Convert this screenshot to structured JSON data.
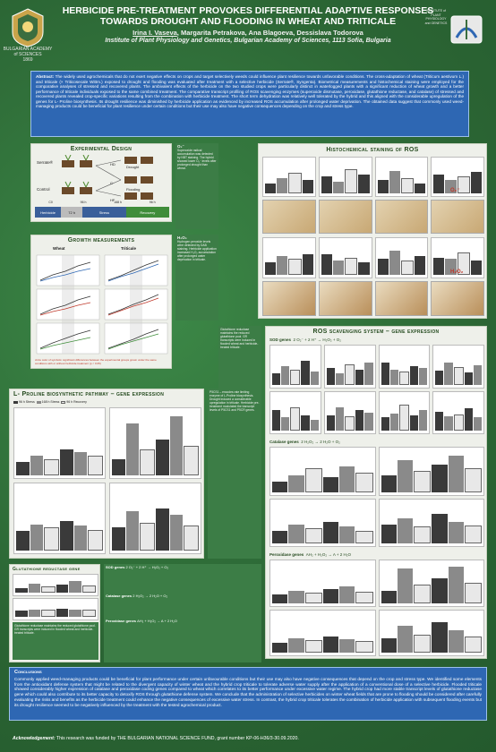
{
  "header": {
    "title_line1": "HERBICIDE PRE-TREATMENT PROVOKES DIFFERENTIAL ADAPTIVE RESPONSES",
    "title_line2": "TOWARDS DROUGHT AND FLOODING IN WHEAT AND TRITICALE",
    "author_main": "Irina I. Vaseva",
    "authors_rest": ", Margarita Petrakova, Ana Blagoeva, Dessislava Todorova",
    "affiliation": "Institute of Plant Physiology and Genetics,  Bulgarian Academy of Sciences, 1113 Sofia, Bulgaria",
    "left_logo_text": "BULGARIAN ACADEMY of SCIENCES",
    "left_logo_year": "1869",
    "right_logo_text": "INSTITUTE of PLANT PHYSIOLOGY and GENETICS"
  },
  "abstract": {
    "label": "Abstract:",
    "text": " The widely used agrochemicals that do not exert negative effects on crops and target selectively weeds could influence plant resilience towards unfavorable conditions. The cross-adaptation of wheat (Triticum aestivum L.) and triticale (× Triticosecale Wittm.) exposed to drought and flooding was evaluated after treatment with a selective herbicide (Serrate®, Syngenta). Biometrical measurements and histochemical staining were employed for the comparative analyses of stressed and recovered plants. The ambivalent effects of the herbicide on the two studied crops were particularly distinct in waterlogged plants with a significant reduction of wheat growth and a better performance of triticale individuals exposed to the same combined treatment. The comparative transcript profiling of ROS scavenging enzymes (superoxide dismutase, peroxidase, glutathione reductase, and catalase) of stressed and recovered plants revealed crop-specific variations resulting from the combination with herbicide treatment. The short term dehydration was relatively well tolerated by the hybrid and this aligned with the considerable upregulation of the genes for L- Proline biosynthesis. Its drought resilience was diminished by herbicide application as evidenced by increased ROS accumulation after prolonged water deprivation. The obtained data suggest that commonly used weed-managing products could be beneficial for plant resilience under certain conditions but their use may also have negative consequences depending on the crop and stress type."
  },
  "experimental": {
    "title": "Experimental Design",
    "labels": [
      "Serrate®",
      "Drought",
      "Control",
      "HD",
      "C",
      "Flooding",
      "HF",
      "CD",
      "CF"
    ],
    "timeline": [
      "Herbicide",
      "72 h",
      "Stress",
      "Recovery"
    ],
    "timepoints": [
      "C0",
      "96 h",
      "168 h",
      "96 h"
    ]
  },
  "histochem": {
    "title": "Histochemical staining of ROS",
    "o2_label": "O₂⁻",
    "h2o2_label": "H₂O₂",
    "o2_notes": "Superoxide radical accumulation was detected by NBT staining. The hybrid showed lower O₂⁻ levels after prolonged drought than wheat.",
    "h2o2_notes": "Hydrogen peroxide levels were detected by DAB staining. Herbicide application increased H₂O₂ accumulation after prolonged water deprivation in triticale."
  },
  "growth": {
    "title": "Growth measurements",
    "wheat": "Wheat",
    "triticale": "Triticale",
    "footnote": "circle color of symbols: significant differences between the experimental groups grown under the same conditions with or without herbicide treatment (p < 0.05)"
  },
  "proline": {
    "title": "L- Proline biosynthetic pathway – gene expression",
    "notes": "P5CS1 – encodes rate limiting enzyme of L-Proline biosynthesis. Drought induced a considerable upregulation in triticale. Herbicide pre-treatment modulated the transcript levels of P5CS1 and P5CR genes."
  },
  "ros": {
    "title": "ROS scavenging system – gene expression",
    "sod_label": "SOD genes",
    "sod_reaction": "2 O₂⁻ + 2 H⁺ → H₂O₂ + O₂",
    "cat_label": "Catalase genes",
    "cat_reaction": "2 H₂O₂ → 2 H₂O + O₂",
    "perox_label": "Peroxidase genes",
    "perox_reaction": "AH₂ + H₂O₂ → A + 2 H₂O",
    "legend": [
      "96 h Stress",
      "168 h Stress",
      "96 h Recovery"
    ]
  },
  "glutathione": {
    "title": "Glutathione reductase gene",
    "notes": "Glutathione reductase maintains the reduced glutathione pool. GR transcripts were induced in flooded wheat and herbicide-treated triticale."
  },
  "center_bottom": {
    "sod_label": "SOD genes",
    "sod_reaction": "2 O₂⁻ + 2 H⁺ → H₂O₂ + O₂",
    "cat_label": "Catalase genes",
    "cat_reaction": "2 H₂O₂ → 2 H₂O + O₂",
    "perox_label": "Peroxidase genes",
    "perox_reaction": "AH₂ + H₂O₂ → A + 2 H₂O"
  },
  "conclusions": {
    "title": "Conclusions",
    "text": "Commonly applied weed-managing products could be beneficial for plant performance under certain unfavourable conditions but their use may also have negative consequences that depend on the crop and stress type. We identified some elements from the antioxidant defense system that might be related to the divergent capacity of winter wheat and the hybrid crop triticale to tolerate adverse water supply after the application of a conventional dose of a selective herbicide. Flooded triticale showed considerably higher expression of catalase and peroxidase coding genes compared to wheat which correlates to its better performance under excessive water regime. The hybrid crop had more stable transcript levels of glutathione reductase gene which could also contribute to its better capacity to detoxify ROS through glutathione defense system. We conclude that the administration of selective herbicides on winter wheat fields that are prone to flooding should be considered after carefully evaluating the risks and benefits as the herbicide treatment could enhance the negative consequences of excessive water stress. In contrast, the hybrid crop triticale tolerates the combination of herbicide application with subsequent flooding events but its drought resilience seemed to be negatively influenced by the treatment with the tested agrochemical product."
  },
  "acknowledgement": {
    "label": "Acknowledgement:",
    "text": " This research was funded by THE BULGARIAN NATIONAL SCIENCE FUND, grant number KP-06-H36/3-30.09.2020."
  },
  "colors": {
    "background": "#2f6f3a",
    "abstract_box": "#2e67b3",
    "panel": "#eef0ea",
    "bar_dark": "#3a3a3a",
    "bar_mid": "#8a8a8a",
    "bar_light": "#e8e8e8"
  }
}
